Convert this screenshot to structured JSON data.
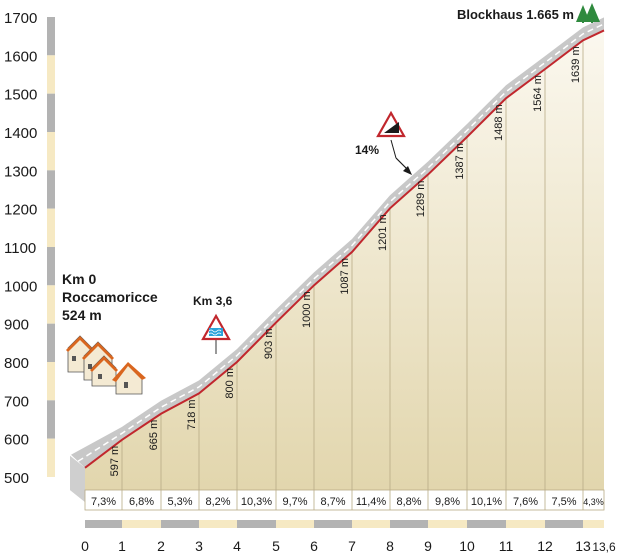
{
  "chart_data": {
    "type": "area",
    "title": "Blockhaus 1.665 m",
    "start_label": {
      "km": "Km 0",
      "place": "Roccamoricce",
      "alt": "524 m"
    },
    "marker_label": "Km 3,6",
    "steep_label": "14%",
    "x": [
      0,
      1,
      2,
      3,
      4,
      5,
      6,
      7,
      8,
      9,
      10,
      11,
      12,
      13,
      13.6
    ],
    "altitude_m": [
      524,
      597,
      665,
      718,
      800,
      903,
      1000,
      1087,
      1201,
      1289,
      1387,
      1488,
      1564,
      1639,
      1665
    ],
    "altitude_labels": [
      "597 m",
      "665 m",
      "718 m",
      "800 m",
      "903 m",
      "1000 m",
      "1087 m",
      "1201 m",
      "1289 m",
      "1387 m",
      "1488 m",
      "1564 m",
      "1639 m"
    ],
    "gradients": [
      "7,3%",
      "6,8%",
      "5,3%",
      "8,2%",
      "10,3%",
      "9,7%",
      "8,7%",
      "11,4%",
      "8,8%",
      "9,8%",
      "10,1%",
      "7,6%",
      "7,5%",
      "4,3%"
    ],
    "x_tick_labels": [
      "0",
      "1",
      "2",
      "3",
      "4",
      "5",
      "6",
      "7",
      "8",
      "9",
      "10",
      "11",
      "12",
      "13",
      "13,6"
    ],
    "y_tick_labels": [
      "1700",
      "1600",
      "1500",
      "1400",
      "1300",
      "1200",
      "1100",
      "1000",
      "900",
      "800",
      "700",
      "600",
      "500"
    ],
    "y_ticks": [
      1700,
      1600,
      1500,
      1400,
      1300,
      1200,
      1100,
      1000,
      900,
      800,
      700,
      600,
      500
    ],
    "ylim": [
      500,
      1700
    ],
    "xlim": [
      0,
      13.6
    ],
    "colors": {
      "profile_line": "#c1272d",
      "road_band": "#c8c8c8",
      "fill_top": "#faf6ea",
      "fill_bottom": "#e4d8b0",
      "axis_grey": "#b3b3b3",
      "axis_cream": "#f6e9c3",
      "tree": "#2f8a3e"
    },
    "icons": [
      "houses-icon",
      "slippery-road-sign-icon",
      "steep-gradient-sign-icon",
      "pine-trees-icon"
    ]
  }
}
